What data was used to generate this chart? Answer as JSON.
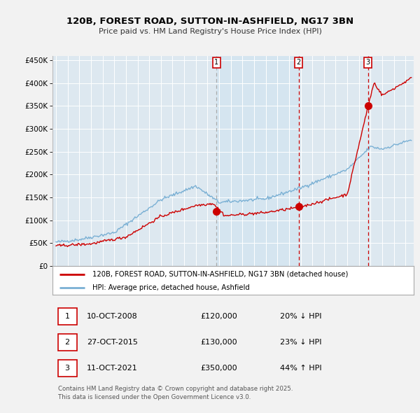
{
  "title_line1": "120B, FOREST ROAD, SUTTON-IN-ASHFIELD, NG17 3BN",
  "title_line2": "Price paid vs. HM Land Registry's House Price Index (HPI)",
  "ylabel_ticks": [
    "£0",
    "£50K",
    "£100K",
    "£150K",
    "£200K",
    "£250K",
    "£300K",
    "£350K",
    "£400K",
    "£450K"
  ],
  "ytick_values": [
    0,
    50000,
    100000,
    150000,
    200000,
    250000,
    300000,
    350000,
    400000,
    450000
  ],
  "ylim": [
    0,
    460000
  ],
  "xlim_start": 1994.7,
  "xlim_end": 2025.7,
  "hpi_color": "#7ab0d4",
  "price_color": "#cc0000",
  "bg_color": "#dde8f0",
  "sale_points": [
    {
      "year": 2008.78,
      "price": 120000,
      "label": "1"
    },
    {
      "year": 2015.82,
      "price": 130000,
      "label": "2"
    },
    {
      "year": 2021.78,
      "price": 350000,
      "label": "3"
    }
  ],
  "vline_colors": [
    "#888888",
    "#cc0000",
    "#cc0000"
  ],
  "legend_entries": [
    {
      "color": "#cc0000",
      "label": "120B, FOREST ROAD, SUTTON-IN-ASHFIELD, NG17 3BN (detached house)"
    },
    {
      "color": "#7ab0d4",
      "label": "HPI: Average price, detached house, Ashfield"
    }
  ],
  "table_rows": [
    {
      "num": "1",
      "date": "10-OCT-2008",
      "price": "£120,000",
      "change": "20% ↓ HPI"
    },
    {
      "num": "2",
      "date": "27-OCT-2015",
      "price": "£130,000",
      "change": "23% ↓ HPI"
    },
    {
      "num": "3",
      "date": "11-OCT-2021",
      "price": "£350,000",
      "change": "44% ↑ HPI"
    }
  ],
  "footnote": "Contains HM Land Registry data © Crown copyright and database right 2025.\nThis data is licensed under the Open Government Licence v3.0."
}
